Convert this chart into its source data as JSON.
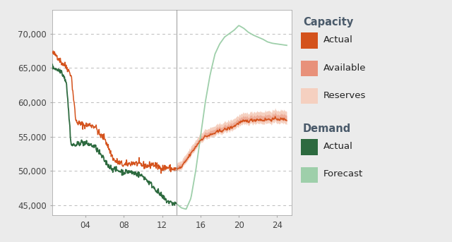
{
  "xlim": [
    0.5,
    25.5
  ],
  "ylim": [
    43500,
    73500
  ],
  "yticks": [
    45000,
    50000,
    55000,
    60000,
    65000,
    70000
  ],
  "xticks": [
    4,
    8,
    12,
    16,
    20,
    24
  ],
  "xticklabels": [
    "04",
    "08",
    "12",
    "16",
    "20",
    "24"
  ],
  "yticklabels": [
    "45,000",
    "50,000",
    "55,000",
    "60,000",
    "65,000",
    "70,000"
  ],
  "background_color": "#ebebeb",
  "plot_bg": "#ffffff",
  "grid_color": "#bbbbbb",
  "vline_x": 13.5,
  "capacity_actual_color": "#d4521c",
  "capacity_band_mid_color": "#e8917a",
  "capacity_band_outer_color": "#f5d0c0",
  "demand_actual_color": "#2d6a3f",
  "demand_forecast_color": "#9ecfaa",
  "legend_title_capacity": "Capacity",
  "legend_title_demand": "Demand",
  "legend_cap_actual": "Actual",
  "legend_cap_available": "Available",
  "legend_cap_reserves": "Reserves",
  "legend_dem_actual": "Actual",
  "legend_dem_forecast": "Forecast",
  "legend_title_color": "#4a5a6a",
  "tick_fontsize": 8.5,
  "legend_fontsize": 9.5,
  "legend_title_fontsize": 10.5
}
